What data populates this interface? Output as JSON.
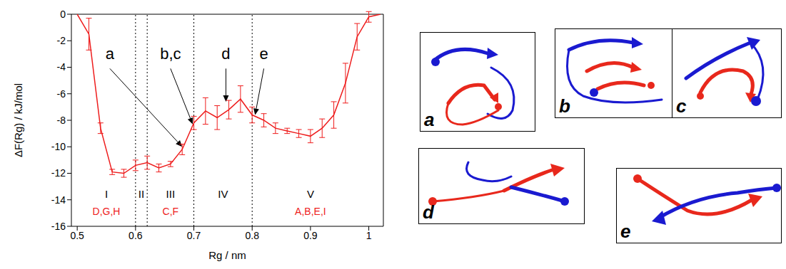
{
  "chart_data": {
    "type": "line",
    "color": "#ee1c1c",
    "x_label": "Rg / nm",
    "y_label": "ΔF(Rg) / kJ/mol",
    "x": [
      0.5,
      0.52,
      0.54,
      0.56,
      0.58,
      0.6,
      0.62,
      0.64,
      0.66,
      0.68,
      0.7,
      0.72,
      0.74,
      0.76,
      0.78,
      0.8,
      0.82,
      0.84,
      0.86,
      0.88,
      0.9,
      0.92,
      0.94,
      0.96,
      0.98,
      1.0,
      1.02
    ],
    "values": [
      0,
      -1.5,
      -8.6,
      -11.9,
      -12.0,
      -11.4,
      -11.2,
      -11.6,
      -11.3,
      -10.2,
      -8.2,
      -7.3,
      -7.8,
      -7.2,
      -6.4,
      -7.6,
      -8.0,
      -8.6,
      -8.8,
      -9.0,
      -9.2,
      -8.6,
      -7.6,
      -5.2,
      -1.7,
      -0.2,
      0
    ],
    "errors": [
      0,
      1.2,
      0.4,
      0.2,
      0.3,
      0.4,
      0.5,
      0.3,
      0.2,
      0.4,
      0.5,
      1.0,
      0.9,
      0.7,
      1.0,
      0.6,
      0.5,
      0.4,
      0.2,
      0.3,
      0.5,
      0.7,
      1.0,
      1.5,
      1.0,
      0.4,
      0
    ],
    "xlim": [
      0.49,
      1.025
    ],
    "xticks": [
      0.5,
      0.6,
      0.7,
      0.8,
      0.9,
      1
    ],
    "ylim": [
      -16,
      0
    ],
    "yticks": [
      0,
      -2,
      -4,
      -6,
      -8,
      -10,
      -12,
      -14,
      -16
    ],
    "boundaries": [
      0.6,
      0.62,
      0.7,
      0.8
    ],
    "regions": [
      {
        "label": "I",
        "letters": "D,G,H",
        "x": 0.55
      },
      {
        "label": "II",
        "x": 0.61
      },
      {
        "label": "III",
        "letters": "C,F",
        "x": 0.66
      },
      {
        "label": "IV",
        "x": 0.75
      },
      {
        "label": "V",
        "letters": "A,B,E,I",
        "x": 0.9
      }
    ],
    "annotations": [
      {
        "text": "a",
        "x": 0.556,
        "y": -3.6,
        "target": [
          0.68,
          -10.0
        ]
      },
      {
        "text": "b,c",
        "x": 0.66,
        "y": -3.6,
        "target": [
          0.698,
          -8.3
        ]
      },
      {
        "text": "d",
        "x": 0.755,
        "y": -3.6,
        "target": [
          0.755,
          -6.6
        ]
      },
      {
        "text": "e",
        "x": 0.82,
        "y": -3.6,
        "target": [
          0.805,
          -7.6
        ]
      }
    ]
  },
  "panels": [
    "a",
    "b",
    "c",
    "d",
    "e"
  ]
}
